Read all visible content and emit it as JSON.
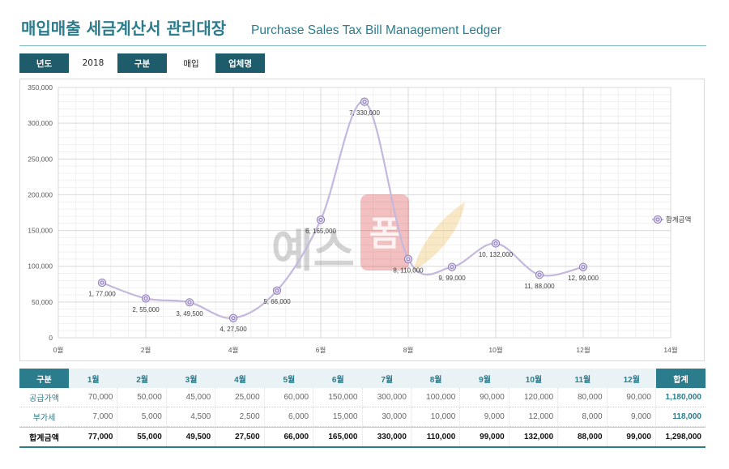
{
  "header": {
    "title": "매입매출 세금계산서 관리대장",
    "subtitle": "Purchase Sales Tax Bill Management Ledger"
  },
  "filters": {
    "year": {
      "label": "년도",
      "value": "2018"
    },
    "category": {
      "label": "구분",
      "value": "매입"
    },
    "company": {
      "label": "업체명",
      "value": ""
    }
  },
  "colors": {
    "accent": "#2b7c8d",
    "accent_dark": "#1f5c6b",
    "series_line": "#c5b8de",
    "marker_stroke": "#8b79b5",
    "marker_fill": "#e6def2",
    "watermark_red": "#d63031"
  },
  "watermark": {
    "text": "예스",
    "logo": "폼"
  },
  "chart_data": {
    "type": "line",
    "title": "",
    "xlabel": "",
    "ylabel": "",
    "xlim": [
      0,
      14
    ],
    "ylim": [
      0,
      350000
    ],
    "x_major_unit": 2,
    "y_major_unit": 50000,
    "grid": true,
    "legend_position": "right",
    "x_tick_labels": [
      "0월",
      "2월",
      "4월",
      "6월",
      "8월",
      "10월",
      "12월",
      "14월"
    ],
    "y_tick_labels": [
      "0",
      "50,000",
      "100,000",
      "150,000",
      "200,000",
      "250,000",
      "300,000",
      "350,000"
    ],
    "series": [
      {
        "name": "합계금액",
        "x": [
          1,
          2,
          3,
          4,
          5,
          6,
          7,
          8,
          9,
          10,
          11,
          12
        ],
        "y": [
          77000,
          55000,
          49500,
          27500,
          66000,
          165000,
          330000,
          110000,
          99000,
          132000,
          88000,
          99000
        ]
      }
    ],
    "data_labels": [
      "1, 77,000",
      "2, 55,000",
      "3, 49,500",
      "4, 27,500",
      "5, 66,000",
      "6, 165,000",
      "7, 330,000",
      "8, 110,000",
      "9, 99,000",
      "10, 132,000",
      "11, 88,000",
      "12, 99,000"
    ]
  },
  "table": {
    "header": {
      "label": "구분",
      "months": [
        "1월",
        "2월",
        "3월",
        "4월",
        "5월",
        "6월",
        "7월",
        "8월",
        "9월",
        "10월",
        "11월",
        "12월"
      ],
      "total": "합계"
    },
    "rows": [
      {
        "label": "공급가액",
        "values": [
          "70,000",
          "50,000",
          "45,000",
          "25,000",
          "60,000",
          "150,000",
          "300,000",
          "100,000",
          "90,000",
          "120,000",
          "80,000",
          "90,000"
        ],
        "total": "1,180,000"
      },
      {
        "label": "부가세",
        "values": [
          "7,000",
          "5,000",
          "4,500",
          "2,500",
          "6,000",
          "15,000",
          "30,000",
          "10,000",
          "9,000",
          "12,000",
          "8,000",
          "9,000"
        ],
        "total": "118,000"
      },
      {
        "label": "합계금액",
        "values": [
          "77,000",
          "55,000",
          "49,500",
          "27,500",
          "66,000",
          "165,000",
          "330,000",
          "110,000",
          "99,000",
          "132,000",
          "88,000",
          "99,000"
        ],
        "total": "1,298,000"
      }
    ]
  }
}
